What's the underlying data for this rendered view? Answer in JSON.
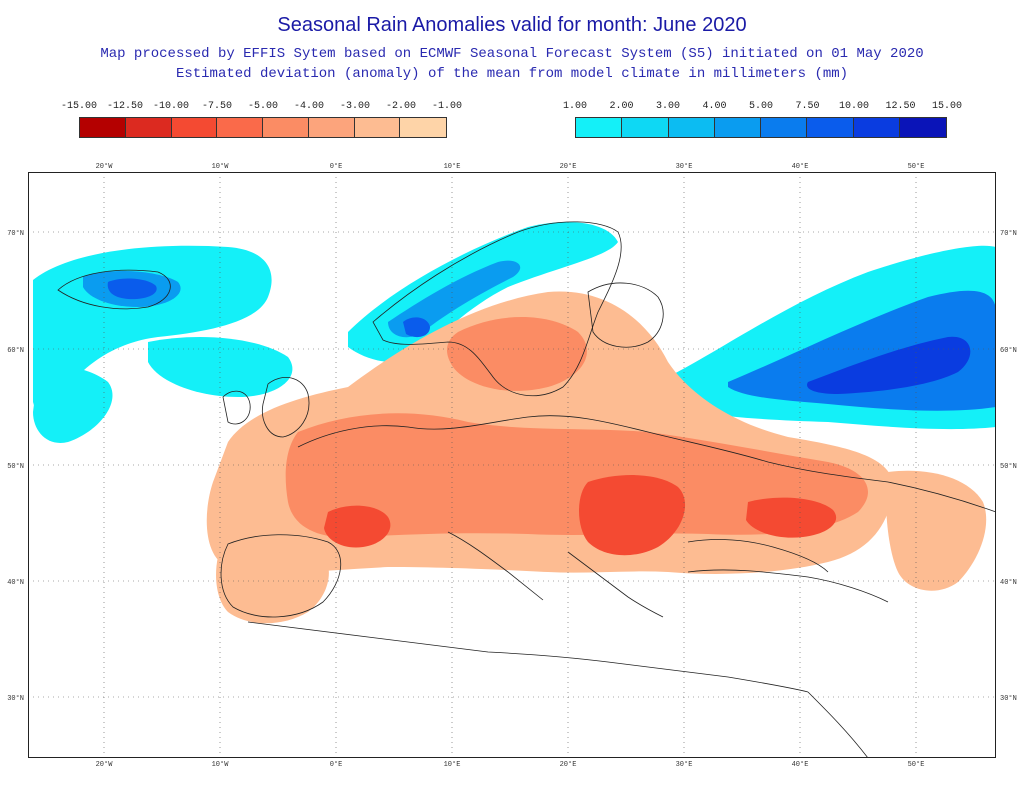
{
  "header": {
    "title": "Seasonal Rain Anomalies valid for month: June 2020",
    "subtitle_1": "Map processed by EFFIS Sytem based on ECMWF Seasonal Forecast System (S5) initiated on 01 May 2020",
    "subtitle_2": "Estimated deviation (anomaly) of the mean from model climate in millimeters (mm)"
  },
  "legend_negative": {
    "labels": [
      "-15.00",
      "-12.50",
      "-10.00",
      "-7.50",
      "-5.00",
      "-4.00",
      "-3.00",
      "-2.00",
      "-1.00"
    ],
    "colors": [
      "#b40000",
      "#dc2a20",
      "#f44a32",
      "#fa6a4a",
      "#fb8c64",
      "#fca47c",
      "#fdbc92",
      "#fed4a8"
    ]
  },
  "legend_positive": {
    "labels": [
      "1.00",
      "2.00",
      "3.00",
      "4.00",
      "5.00",
      "7.50",
      "10.00",
      "12.50",
      "15.00"
    ],
    "colors": [
      "#14f0f8",
      "#0ed8f4",
      "#0cbcf2",
      "#0a9cf0",
      "#0a7cee",
      "#0a5cec",
      "#0a3ce0",
      "#0a14b8"
    ]
  },
  "map": {
    "lon_labels": [
      "20°W",
      "10°W",
      "0°E",
      "10°E",
      "20°E",
      "30°E",
      "40°E",
      "50°E"
    ],
    "lat_labels": [
      "70°N",
      "60°N",
      "50°N",
      "40°N",
      "30°N"
    ]
  }
}
